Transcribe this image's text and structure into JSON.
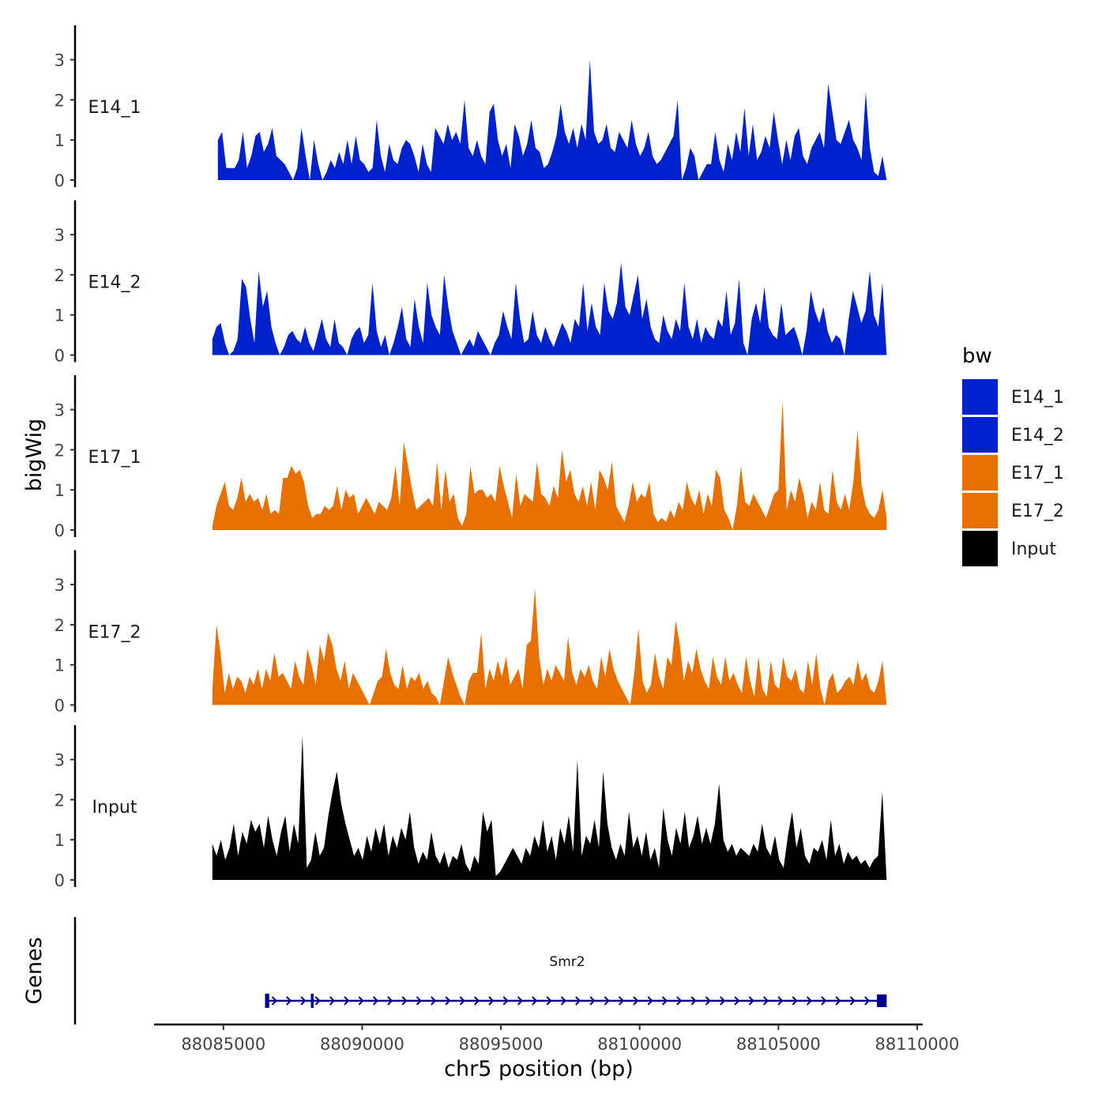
{
  "chart_data": {
    "type": "area",
    "title": "",
    "ylabel": "bigWig",
    "genes_label": "Genes",
    "xlabel": "chr5 position (bp)",
    "xlim": [
      88082500,
      88110200
    ],
    "x_ticks": [
      88085000,
      88090000,
      88095000,
      88100000,
      88105000,
      88110000
    ],
    "x_tick_labels": [
      "88085000",
      "88090000",
      "88095000",
      "88100000",
      "88105000",
      "88110000"
    ],
    "ylim": [
      0,
      3.9
    ],
    "y_ticks": [
      0,
      1,
      2,
      3
    ],
    "y_tick_labels": [
      "0",
      "1",
      "2",
      "3"
    ],
    "legend": {
      "title": "bw",
      "position": "right",
      "entries": [
        {
          "label": "E14_1",
          "color": "#0022CC"
        },
        {
          "label": "E14_2",
          "color": "#0022CC"
        },
        {
          "label": "E17_1",
          "color": "#E87000"
        },
        {
          "label": "E17_2",
          "color": "#E87000"
        },
        {
          "label": "Input",
          "color": "#000000"
        }
      ]
    },
    "series": [
      {
        "name": "E14_1",
        "color": "#0022CC",
        "x_start": 88084800,
        "x_end": 88108900,
        "values": [
          1.0,
          1.2,
          0.3,
          0.3,
          0.3,
          0.5,
          1.2,
          0.3,
          0.6,
          1.1,
          1.2,
          0.7,
          0.9,
          1.3,
          0.6,
          0.5,
          0.4,
          0.2,
          0.0,
          0.3,
          1.3,
          0.6,
          0.0,
          1.0,
          0.4,
          0.0,
          0.2,
          0.5,
          0.3,
          0.7,
          0.4,
          1.0,
          0.4,
          1.1,
          0.5,
          0.4,
          0.2,
          0.3,
          1.5,
          0.6,
          0.2,
          0.9,
          0.5,
          0.4,
          0.8,
          1.0,
          0.9,
          0.6,
          0.2,
          0.9,
          0.4,
          0.2,
          1.3,
          1.1,
          0.9,
          1.4,
          1.0,
          1.2,
          0.9,
          2.0,
          0.8,
          0.6,
          1.0,
          0.6,
          0.4,
          1.7,
          1.9,
          1.0,
          0.6,
          0.9,
          0.3,
          1.4,
          1.1,
          0.6,
          0.9,
          1.5,
          0.8,
          0.7,
          0.3,
          0.4,
          0.7,
          1.1,
          1.9,
          1.2,
          0.9,
          1.3,
          0.8,
          1.4,
          1.0,
          3.0,
          1.2,
          0.9,
          1.0,
          1.4,
          0.8,
          0.7,
          1.2,
          1.0,
          0.8,
          1.5,
          0.9,
          0.6,
          0.8,
          1.2,
          0.6,
          0.4,
          0.5,
          0.7,
          0.9,
          1.1,
          2.0,
          0.0,
          0.3,
          0.8,
          0.6,
          0.0,
          0.2,
          0.4,
          0.4,
          1.2,
          0.5,
          0.2,
          0.9,
          0.5,
          1.2,
          0.7,
          1.8,
          0.6,
          1.4,
          0.5,
          0.7,
          1.1,
          0.8,
          1.7,
          1.0,
          0.4,
          1.0,
          0.5,
          1.1,
          1.3,
          0.6,
          0.4,
          0.8,
          1.0,
          1.2,
          0.8,
          2.4,
          1.7,
          1.0,
          0.9,
          1.2,
          1.5,
          1.0,
          0.8,
          0.5,
          2.2,
          0.8,
          0.2,
          0.1,
          0.6,
          0.0
        ]
      },
      {
        "name": "E14_2",
        "color": "#0022CC",
        "x_start": 88084600,
        "x_end": 88108900,
        "values": [
          0.4,
          0.7,
          0.8,
          0.3,
          0.0,
          0.1,
          0.4,
          1.9,
          1.7,
          0.9,
          0.3,
          2.1,
          1.2,
          1.6,
          0.7,
          0.3,
          0.0,
          0.2,
          0.5,
          0.6,
          0.4,
          0.3,
          0.7,
          0.3,
          0.1,
          0.5,
          0.9,
          0.4,
          0.2,
          0.9,
          0.3,
          0.2,
          0.0,
          0.4,
          0.6,
          0.7,
          0.3,
          0.5,
          1.8,
          0.6,
          0.2,
          0.5,
          0.0,
          0.3,
          0.7,
          1.2,
          0.4,
          0.2,
          1.4,
          0.7,
          0.3,
          1.8,
          1.0,
          0.7,
          0.5,
          2.0,
          1.2,
          0.6,
          0.3,
          0.0,
          0.2,
          0.4,
          0.2,
          0.6,
          0.4,
          0.2,
          0.0,
          0.3,
          0.5,
          1.1,
          0.7,
          0.4,
          1.8,
          0.9,
          0.3,
          0.4,
          1.1,
          0.5,
          0.3,
          0.7,
          0.4,
          0.2,
          0.5,
          0.8,
          0.6,
          0.3,
          0.9,
          0.7,
          1.8,
          0.6,
          1.3,
          0.7,
          0.5,
          1.8,
          1.1,
          0.9,
          1.3,
          2.3,
          1.2,
          1.0,
          1.5,
          2.0,
          0.9,
          1.4,
          0.7,
          0.4,
          0.3,
          1.0,
          0.6,
          0.4,
          0.9,
          0.6,
          1.8,
          0.7,
          0.4,
          0.9,
          0.3,
          0.7,
          0.5,
          0.4,
          0.9,
          0.7,
          1.6,
          0.5,
          0.8,
          1.9,
          0.3,
          0.0,
          0.9,
          1.3,
          0.8,
          1.7,
          0.7,
          0.5,
          0.4,
          1.3,
          0.5,
          0.6,
          0.7,
          0.4,
          0.0,
          0.6,
          1.6,
          1.1,
          0.8,
          1.2,
          0.6,
          0.3,
          0.5,
          0.4,
          0.0,
          0.9,
          1.6,
          1.2,
          0.8,
          1.1,
          2.1,
          1.0,
          0.7,
          1.8,
          0.0
        ]
      },
      {
        "name": "E17_1",
        "color": "#E87000",
        "x_start": 88084600,
        "x_end": 88108900,
        "values": [
          0.1,
          0.6,
          0.9,
          1.2,
          0.6,
          0.5,
          0.8,
          1.3,
          0.7,
          0.9,
          0.7,
          0.8,
          0.5,
          0.9,
          0.4,
          0.5,
          0.4,
          1.3,
          1.3,
          1.6,
          1.4,
          1.5,
          1.2,
          0.6,
          0.3,
          0.4,
          0.4,
          0.6,
          0.5,
          0.6,
          1.1,
          0.5,
          1.0,
          0.8,
          0.9,
          0.4,
          0.6,
          0.8,
          0.6,
          0.4,
          0.7,
          0.6,
          0.5,
          0.8,
          1.6,
          0.6,
          2.2,
          1.6,
          1.0,
          0.5,
          0.6,
          0.7,
          0.8,
          0.6,
          1.7,
          0.5,
          1.5,
          0.7,
          0.9,
          0.3,
          0.1,
          0.4,
          1.6,
          0.9,
          1.0,
          1.0,
          0.8,
          0.9,
          0.7,
          1.6,
          1.1,
          0.7,
          0.3,
          1.4,
          0.6,
          0.9,
          0.8,
          0.7,
          1.7,
          0.9,
          0.8,
          0.6,
          1.1,
          0.8,
          2.0,
          1.2,
          1.5,
          0.9,
          0.7,
          1.1,
          0.6,
          1.2,
          0.5,
          1.5,
          1.3,
          1.0,
          1.7,
          0.6,
          0.4,
          0.2,
          0.6,
          1.2,
          0.7,
          0.9,
          0.8,
          1.2,
          0.4,
          0.2,
          0.3,
          0.2,
          0.5,
          0.3,
          0.7,
          0.5,
          1.2,
          0.8,
          0.6,
          1.0,
          0.4,
          0.9,
          0.6,
          1.5,
          1.3,
          0.5,
          0.3,
          0.0,
          0.6,
          1.6,
          0.7,
          0.6,
          0.9,
          0.7,
          0.5,
          0.3,
          0.6,
          0.9,
          1.0,
          3.2,
          0.5,
          1.0,
          0.7,
          1.3,
          0.9,
          0.3,
          0.7,
          0.5,
          1.2,
          0.5,
          0.4,
          1.5,
          0.7,
          0.5,
          0.9,
          0.5,
          1.2,
          2.5,
          1.1,
          0.6,
          0.4,
          0.3,
          0.5,
          1.0,
          0.3
        ]
      },
      {
        "name": "E17_2",
        "color": "#E87000",
        "x_start": 88084600,
        "x_end": 88108900,
        "values": [
          0.4,
          2.0,
          1.3,
          0.3,
          0.8,
          0.4,
          0.7,
          0.6,
          0.3,
          0.7,
          0.5,
          0.9,
          0.4,
          0.9,
          0.6,
          1.3,
          0.7,
          0.8,
          0.6,
          0.4,
          1.1,
          0.7,
          0.5,
          1.4,
          1.0,
          0.5,
          1.5,
          1.1,
          1.8,
          1.5,
          0.9,
          0.6,
          1.1,
          0.4,
          0.8,
          0.6,
          0.4,
          0.2,
          0.0,
          0.3,
          0.6,
          0.7,
          1.4,
          0.8,
          0.5,
          0.4,
          1.0,
          0.4,
          0.7,
          0.6,
          0.8,
          0.4,
          0.6,
          0.3,
          0.2,
          0.0,
          0.6,
          1.2,
          0.8,
          0.5,
          0.2,
          0.0,
          0.6,
          0.8,
          0.8,
          1.8,
          0.4,
          0.9,
          0.6,
          1.1,
          0.7,
          1.2,
          0.5,
          0.7,
          0.9,
          0.4,
          1.5,
          1.6,
          2.9,
          1.2,
          0.5,
          0.9,
          0.6,
          1.0,
          0.8,
          0.6,
          1.7,
          0.8,
          0.5,
          0.9,
          0.7,
          1.0,
          0.6,
          0.4,
          1.2,
          0.7,
          1.4,
          0.9,
          0.6,
          0.4,
          0.2,
          0.0,
          0.8,
          1.9,
          0.6,
          0.3,
          0.5,
          1.3,
          0.7,
          0.4,
          1.2,
          1.0,
          2.1,
          1.5,
          0.6,
          1.1,
          0.8,
          1.4,
          0.9,
          0.6,
          0.4,
          1.2,
          0.7,
          0.5,
          1.2,
          0.6,
          0.8,
          0.5,
          0.3,
          1.2,
          0.6,
          0.2,
          1.2,
          0.4,
          0.2,
          1.1,
          0.5,
          0.4,
          1.2,
          0.7,
          0.6,
          0.9,
          0.4,
          0.3,
          1.1,
          0.5,
          1.3,
          0.4,
          0.0,
          0.6,
          0.8,
          0.3,
          0.4,
          0.6,
          0.7,
          0.5,
          1.1,
          0.6,
          0.8,
          0.4,
          0.3,
          0.6,
          1.1,
          0.0
        ]
      },
      {
        "name": "Input",
        "color": "#000000",
        "x_start": 88084600,
        "x_end": 88108900,
        "values": [
          0.9,
          0.6,
          1.0,
          0.5,
          0.8,
          1.4,
          0.6,
          1.2,
          0.9,
          1.5,
          1.2,
          1.4,
          0.8,
          1.6,
          1.0,
          0.6,
          1.2,
          1.6,
          0.7,
          1.4,
          0.9,
          3.6,
          0.3,
          0.5,
          1.2,
          0.6,
          0.8,
          1.6,
          2.2,
          2.7,
          1.9,
          1.4,
          1.0,
          0.6,
          0.8,
          0.5,
          1.1,
          0.7,
          1.3,
          0.9,
          1.4,
          0.6,
          1.1,
          0.8,
          1.3,
          1.0,
          1.7,
          0.8,
          0.4,
          0.7,
          0.5,
          1.2,
          0.6,
          0.4,
          0.7,
          0.3,
          0.6,
          0.5,
          0.9,
          0.4,
          0.2,
          0.6,
          0.4,
          1.7,
          1.2,
          1.5,
          0.1,
          0.2,
          0.4,
          0.6,
          0.8,
          0.6,
          0.4,
          0.8,
          0.6,
          1.1,
          0.8,
          1.5,
          0.7,
          1.1,
          0.5,
          1.3,
          0.9,
          1.6,
          0.7,
          3.0,
          0.6,
          1.1,
          0.9,
          1.5,
          0.8,
          2.7,
          1.4,
          0.8,
          0.5,
          0.9,
          0.6,
          1.7,
          0.8,
          1.1,
          0.6,
          1.2,
          0.5,
          0.8,
          0.3,
          1.8,
          1.0,
          0.6,
          1.3,
          0.9,
          1.7,
          0.8,
          1.1,
          1.6,
          0.9,
          1.3,
          0.9,
          1.4,
          2.4,
          1.0,
          0.7,
          0.9,
          0.6,
          0.8,
          0.7,
          0.6,
          0.9,
          0.7,
          1.4,
          0.8,
          0.6,
          1.1,
          0.5,
          0.3,
          1.1,
          1.7,
          0.8,
          1.3,
          0.6,
          0.4,
          0.8,
          0.7,
          1.0,
          0.5,
          1.5,
          0.6,
          0.9,
          0.4,
          0.7,
          0.5,
          0.6,
          0.4,
          0.5,
          0.3,
          0.5,
          0.6,
          2.2,
          0.0
        ]
      }
    ],
    "gene": {
      "name": "Smr2",
      "color": "#00008B",
      "x_start": 88086500,
      "x_end": 88108900,
      "exons": [
        [
          88086500,
          88086650
        ],
        [
          88088150,
          88088250
        ],
        [
          88108550,
          88108900
        ]
      ],
      "strand": "+"
    }
  }
}
